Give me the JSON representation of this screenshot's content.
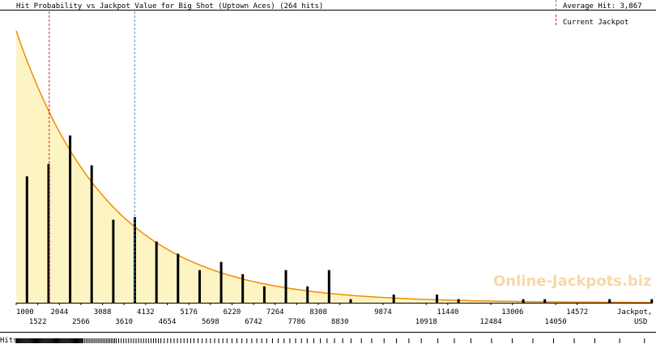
{
  "chart_data": {
    "type": "bar",
    "title": "Hit Probability vs Jackpot Value for Big Shot (Uptown Aces) (264 hits)",
    "xlabel": "Jackpot, USD",
    "xlabel_lines": [
      "Jackpot,",
      "USD"
    ],
    "xlim": [
      1000,
      16400
    ],
    "ylim": [
      0,
      100
    ],
    "grid": false,
    "legend": [
      {
        "label": "Average Hit: 3,867",
        "color": "#4a90c8",
        "style": "dashed"
      },
      {
        "label": "Current Jackpot",
        "color": "#cc2222",
        "style": "dashed"
      }
    ],
    "markers": {
      "average_hit": 3867,
      "current_jackpot": 1800
    },
    "x_ticks_top": [
      "1000",
      "2044",
      "3088",
      "4132",
      "5176",
      "6220",
      "7264",
      "8308",
      "9874",
      "11440",
      "13006",
      "14572"
    ],
    "x_ticks_bottom": [
      "1522",
      "2566",
      "3610",
      "4654",
      "5698",
      "6742",
      "7786",
      "8830",
      "10918",
      "12484",
      "14050"
    ],
    "curve_color": "#f08c00",
    "curve_fill": "#fdf4c4",
    "bar_color": "#000000",
    "curve": {
      "y0": 100,
      "decay": 0.000445
    },
    "bins": [
      1261,
      1783,
      2305,
      2827,
      3349,
      3871,
      4393,
      4915,
      5437,
      5959,
      6481,
      7003,
      7525,
      8047,
      8569,
      9091,
      10135,
      11179,
      11701,
      13267,
      13789,
      15355,
      16377
    ],
    "values": [
      46.5,
      51,
      61.5,
      50.5,
      30.5,
      31.5,
      22.5,
      18,
      12,
      15,
      10.5,
      6,
      12,
      6,
      12,
      1.3,
      3,
      3,
      1.3,
      1.3,
      1.3,
      1.3,
      1.3
    ],
    "watermark": "Online-Jackpots.biz",
    "hits_label": "Hits",
    "hits_strip": [
      1000,
      1020,
      1040,
      1060,
      1080,
      1100,
      1120,
      1140,
      1160,
      1180,
      1200,
      1220,
      1240,
      1260,
      1280,
      1300,
      1320,
      1340,
      1360,
      1380,
      1400,
      1420,
      1440,
      1460,
      1480,
      1500,
      1520,
      1540,
      1560,
      1580,
      1600,
      1620,
      1640,
      1660,
      1680,
      1700,
      1720,
      1740,
      1760,
      1780,
      1800,
      1820,
      1840,
      1860,
      1880,
      1900,
      1920,
      1940,
      1960,
      1980,
      2000,
      2020,
      2040,
      2060,
      2080,
      2100,
      2120,
      2140,
      2160,
      2180,
      2200,
      2220,
      2240,
      2260,
      2280,
      2300,
      2320,
      2340,
      2360,
      2380,
      2400,
      2420,
      2440,
      2460,
      2480,
      2500,
      2520,
      2540,
      2560,
      2580,
      2600,
      2620,
      2660,
      2700,
      2740,
      2780,
      2820,
      2860,
      2900,
      2940,
      2980,
      3020,
      3060,
      3100,
      3140,
      3180,
      3220,
      3260,
      3300,
      3340,
      3380,
      3420,
      3480,
      3540,
      3600,
      3660,
      3720,
      3780,
      3840,
      3900,
      3960,
      4020,
      4080,
      4140,
      4200,
      4260,
      4320,
      4380,
      4440,
      4500,
      4580,
      4660,
      4740,
      4820,
      4900,
      4980,
      5060,
      5140,
      5220,
      5300,
      5400,
      5500,
      5600,
      5700,
      5800,
      5900,
      6000,
      6100,
      6220,
      6340,
      6460,
      6580,
      6700,
      6820,
      6940,
      7060,
      7200,
      7340,
      7480,
      7620,
      7760,
      7900,
      8040,
      8200,
      8360,
      8520,
      8700,
      8900,
      9100,
      9350,
      9600,
      9900,
      10200,
      10500,
      10800,
      11200,
      11600,
      12000,
      12500,
      13000,
      13500,
      14000,
      14500,
      15000,
      15600,
      16200
    ]
  }
}
